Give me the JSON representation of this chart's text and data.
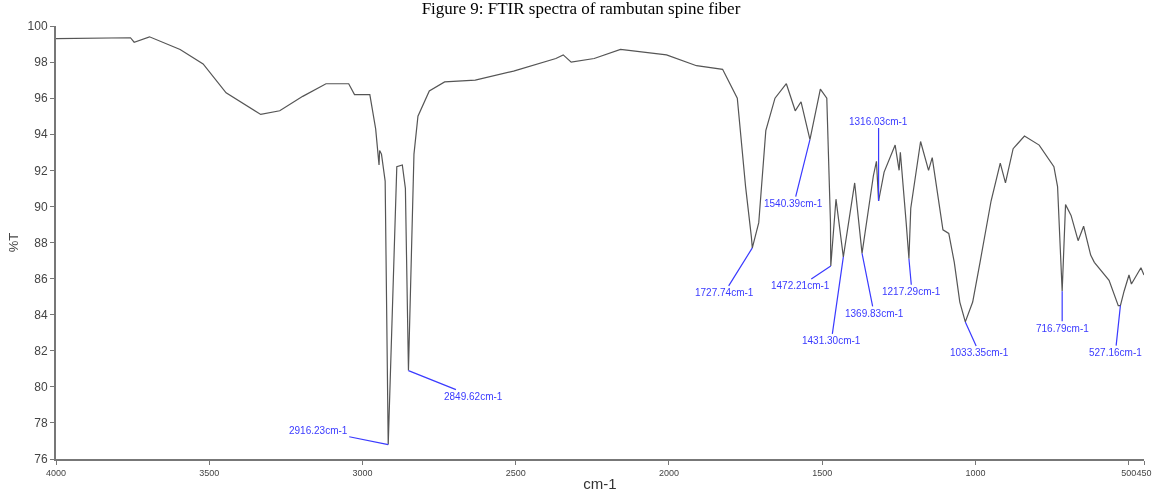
{
  "chart_data": {
    "type": "line",
    "title": "Figure 9: FTIR spectra of rambutan spine fiber",
    "xlabel": "cm-1",
    "ylabel": "%T",
    "x": [
      4000,
      3757,
      3745,
      3695,
      3595,
      3520,
      3445,
      3332,
      3270,
      3195,
      3119,
      3045,
      3026,
      2976,
      2957,
      2946,
      2944,
      2938,
      2926,
      2916,
      2888,
      2870,
      2860,
      2850,
      2832,
      2819,
      2782,
      2732,
      2632,
      2507,
      2369,
      2345,
      2319,
      2244,
      2158,
      2008,
      1910,
      1825,
      1777,
      1750,
      1731,
      1728,
      1707,
      1684,
      1654,
      1617,
      1588,
      1569,
      1540,
      1506,
      1485,
      1473,
      1472,
      1455,
      1431,
      1394,
      1370,
      1333,
      1323,
      1316,
      1298,
      1262,
      1249,
      1245,
      1226,
      1217,
      1211,
      1179,
      1153,
      1141,
      1106,
      1087,
      1069,
      1051,
      1033,
      1009,
      985,
      949,
      919,
      902,
      877,
      840,
      792,
      744,
      732,
      723,
      717,
      706,
      688,
      665,
      647,
      624,
      612,
      564,
      534,
      527,
      515,
      499,
      491,
      460,
      450
    ],
    "values": [
      99.3,
      99.35,
      99.1,
      99.4,
      98.7,
      97.9,
      96.3,
      95.1,
      95.3,
      96.1,
      96.8,
      96.8,
      96.2,
      96.2,
      94.3,
      92.3,
      93.1,
      92.9,
      91.4,
      76.8,
      92.2,
      92.3,
      91.0,
      80.9,
      92.9,
      95.0,
      96.4,
      96.9,
      97.0,
      97.5,
      98.2,
      98.4,
      98.0,
      98.2,
      98.7,
      98.4,
      97.8,
      97.6,
      96.0,
      91.1,
      88.3,
      87.7,
      89.1,
      94.2,
      96.0,
      96.8,
      95.3,
      95.8,
      93.7,
      96.5,
      96.0,
      89.1,
      86.7,
      90.4,
      87.2,
      91.3,
      87.4,
      91.7,
      92.5,
      90.3,
      91.9,
      93.4,
      92.0,
      93.0,
      89.1,
      87.1,
      89.9,
      93.6,
      92.0,
      92.7,
      88.7,
      88.5,
      86.9,
      84.7,
      83.6,
      84.7,
      86.9,
      90.3,
      92.4,
      91.3,
      93.2,
      93.9,
      93.4,
      92.2,
      91.1,
      87.6,
      85.3,
      90.1,
      89.5,
      88.1,
      88.9,
      87.3,
      86.9,
      85.9,
      84.5,
      84.5,
      85.3,
      86.2,
      85.7,
      86.6,
      86.2
    ],
    "color": "#555555",
    "marker": "none",
    "xlim": [
      4000,
      450
    ],
    "xticks": [
      4000,
      3500,
      3000,
      2500,
      2000,
      1500,
      1000,
      500,
      450
    ],
    "ylim": [
      76,
      100
    ],
    "yticks": [
      76,
      78,
      80,
      82,
      84,
      86,
      88,
      90,
      92,
      94,
      96,
      98,
      100
    ],
    "annotations": [
      {
        "text": "2916.23cm-1",
        "x": 2916,
        "y": 76.8
      },
      {
        "text": "2849.62cm-1",
        "x": 2850,
        "y": 80.9
      },
      {
        "text": "1727.74cm-1",
        "x": 1728,
        "y": 87.7
      },
      {
        "text": "1540.39cm-1",
        "x": 1540,
        "y": 93.7
      },
      {
        "text": "1316.03cm-1",
        "x": 1316,
        "y": 90.3
      },
      {
        "text": "1472.21cm-1",
        "x": 1472,
        "y": 86.7
      },
      {
        "text": "1431.30cm-1",
        "x": 1431,
        "y": 87.2
      },
      {
        "text": "1369.83cm-1",
        "x": 1370,
        "y": 87.4
      },
      {
        "text": "1217.29cm-1",
        "x": 1217,
        "y": 87.1
      },
      {
        "text": "1033.35cm-1",
        "x": 1033,
        "y": 83.6
      },
      {
        "text": "716.79cm-1",
        "x": 717,
        "y": 85.3
      },
      {
        "text": "527.16cm-1",
        "x": 527,
        "y": 84.5
      }
    ]
  }
}
